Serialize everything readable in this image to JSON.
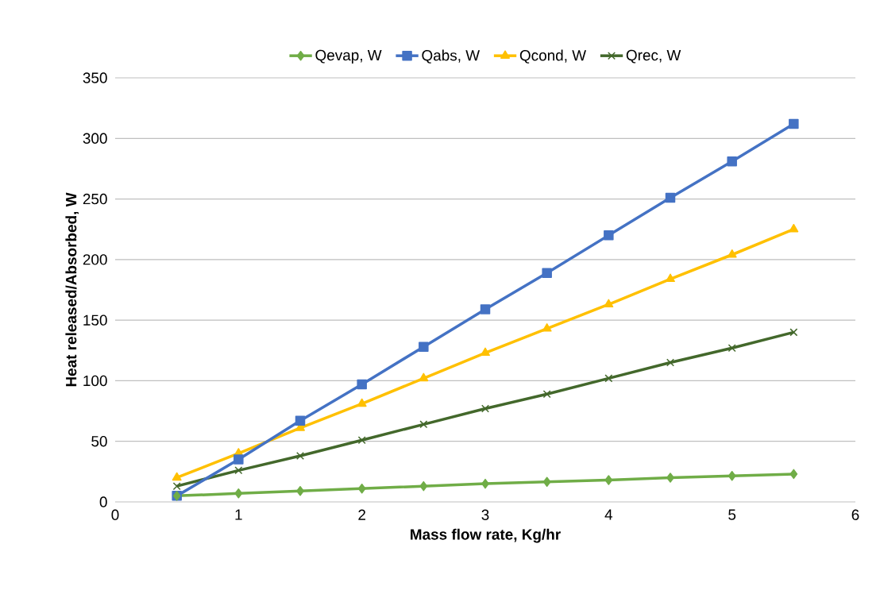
{
  "chart_data": {
    "type": "line",
    "xlabel": "Mass flow rate, Kg/hr",
    "ylabel": "Heat released/Absorbed, W",
    "x": [
      0.5,
      1,
      1.5,
      2,
      2.5,
      3,
      3.5,
      4,
      4.5,
      5,
      5.5
    ],
    "series": [
      {
        "name": "Qevap, W",
        "color": "#70ad47",
        "marker": "diamond",
        "values": [
          5,
          7,
          9,
          11,
          13,
          15,
          16.5,
          18,
          20,
          21.5,
          23
        ]
      },
      {
        "name": "Qabs, W",
        "color": "#4472c4",
        "marker": "square",
        "values": [
          5,
          35,
          67,
          97,
          128,
          159,
          189,
          220,
          251,
          281,
          312
        ]
      },
      {
        "name": "Qcond, W",
        "color": "#ffc000",
        "marker": "triangle",
        "values": [
          20,
          40,
          61,
          81,
          102,
          123,
          143,
          163,
          184,
          204,
          225
        ]
      },
      {
        "name": "Qrec, W",
        "color": "#43682b",
        "marker": "cross",
        "values": [
          13,
          26,
          38,
          51,
          64,
          77,
          89,
          102,
          115,
          127,
          140
        ]
      }
    ],
    "xlim": [
      0,
      6
    ],
    "xticks": [
      0,
      1,
      2,
      3,
      4,
      5,
      6
    ],
    "ylim": [
      0,
      350
    ],
    "yticks": [
      0,
      50,
      100,
      150,
      200,
      250,
      300,
      350
    ],
    "grid": "y",
    "legend": "top",
    "line_style": "solid"
  }
}
